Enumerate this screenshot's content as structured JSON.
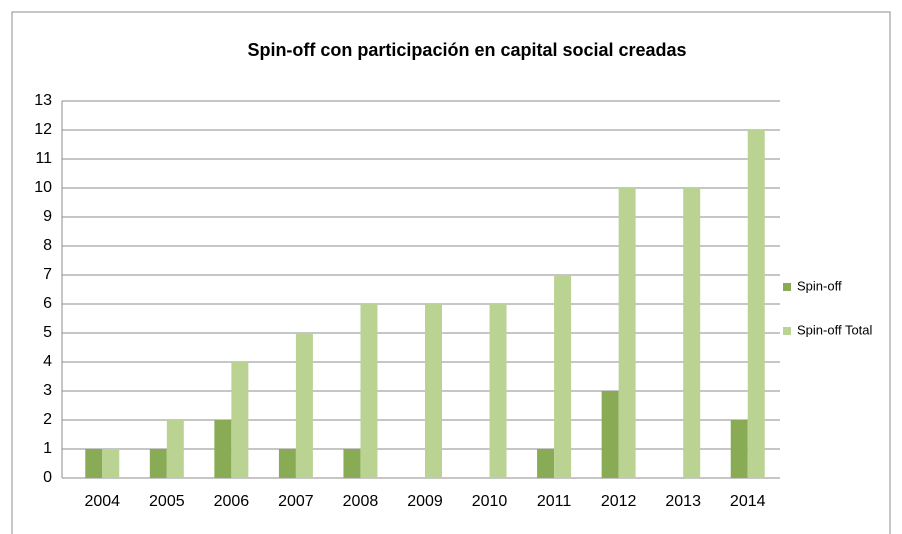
{
  "chart_data": {
    "type": "bar",
    "title": "Spin-off  con participación en capital social creadas",
    "categories": [
      "2004",
      "2005",
      "2006",
      "2007",
      "2008",
      "2009",
      "2010",
      "2011",
      "2012",
      "2013",
      "2014"
    ],
    "series": [
      {
        "name": "Spin-off",
        "color": "#8aab55",
        "values": [
          1,
          1,
          2,
          1,
          1,
          0,
          0,
          1,
          3,
          0,
          2
        ]
      },
      {
        "name": "Spin-off Total",
        "color": "#bad393",
        "values": [
          1,
          2,
          4,
          5,
          6,
          6,
          6,
          7,
          10,
          10,
          12
        ]
      }
    ],
    "ylim": [
      0,
      13
    ],
    "yticks": [
      0,
      1,
      2,
      3,
      4,
      5,
      6,
      7,
      8,
      9,
      10,
      11,
      12,
      13
    ],
    "grid": true,
    "legend": "right"
  }
}
